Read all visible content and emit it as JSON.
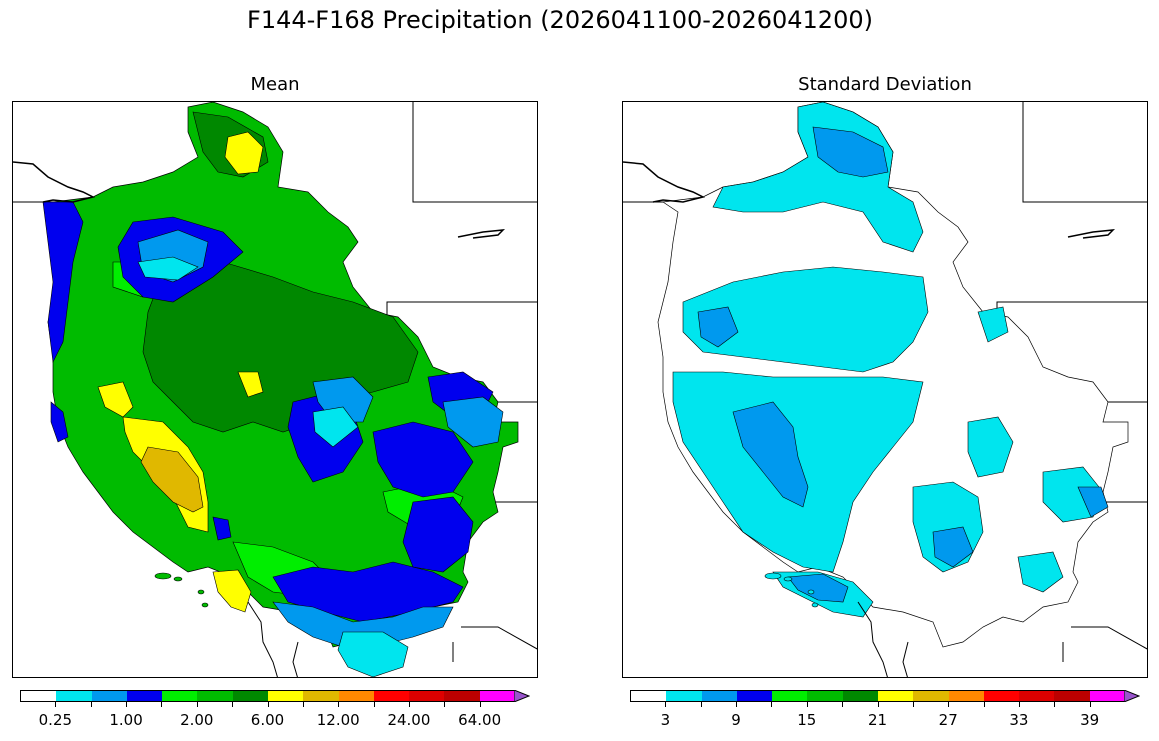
{
  "title": "F144-F168 Precipitation (2026041100-2026041200)",
  "panels": {
    "mean": {
      "title": "Mean"
    },
    "std": {
      "title": "Standard Deviation"
    }
  },
  "colorbars": {
    "mean": {
      "colors": [
        "#ffffff",
        "#00e5ee",
        "#0099ee",
        "#0000ee",
        "#00ee00",
        "#00bb00",
        "#008800",
        "#ffff00",
        "#e0b800",
        "#ff8800",
        "#ff0000",
        "#dd0000",
        "#bb0000",
        "#ff00ff",
        "#9955cc"
      ],
      "labels": [
        "0.25",
        "1.00",
        "2.00",
        "6.00",
        "12.00",
        "24.00",
        "64.00"
      ]
    },
    "std": {
      "colors": [
        "#ffffff",
        "#00e5ee",
        "#0099ee",
        "#0000ee",
        "#00ee00",
        "#00bb00",
        "#008800",
        "#ffff00",
        "#e0b800",
        "#ff8800",
        "#ff0000",
        "#dd0000",
        "#bb0000",
        "#ff00ff",
        "#9955cc"
      ],
      "labels": [
        "3",
        "9",
        "15",
        "21",
        "27",
        "33",
        "39"
      ]
    }
  }
}
